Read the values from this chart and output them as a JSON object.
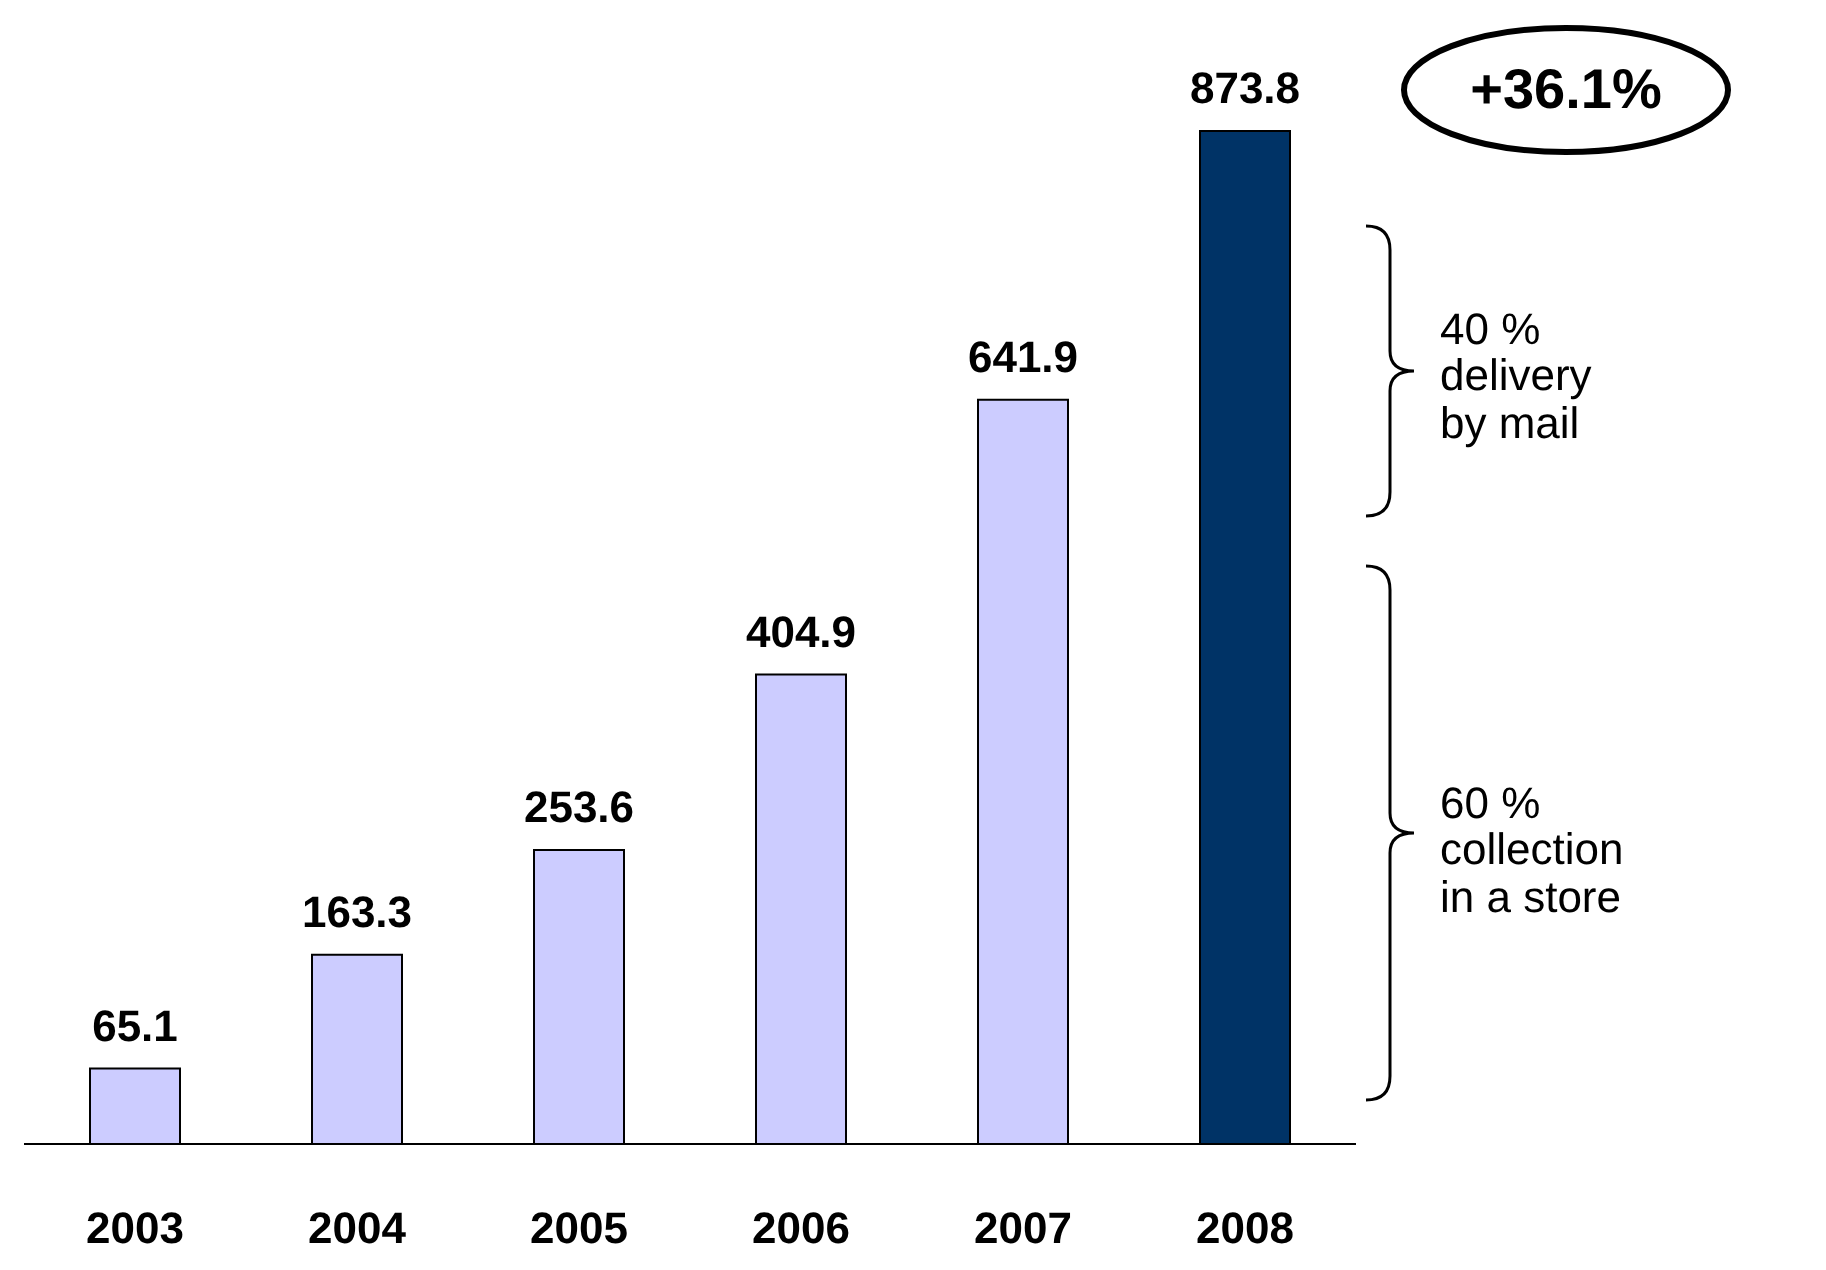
{
  "chart_data": {
    "type": "bar",
    "categories": [
      "2003",
      "2004",
      "2005",
      "2006",
      "2007",
      "2008"
    ],
    "values": [
      65.1,
      163.3,
      253.6,
      404.9,
      641.9,
      873.8
    ],
    "colors": [
      "#ccccff",
      "#ccccff",
      "#ccccff",
      "#ccccff",
      "#ccccff",
      "#003366"
    ],
    "data_labels": true,
    "annotations": [
      "+36.1%",
      "40 %\ndelivery\nby mail",
      "60 %\ncollection\nin a store"
    ]
  }
}
